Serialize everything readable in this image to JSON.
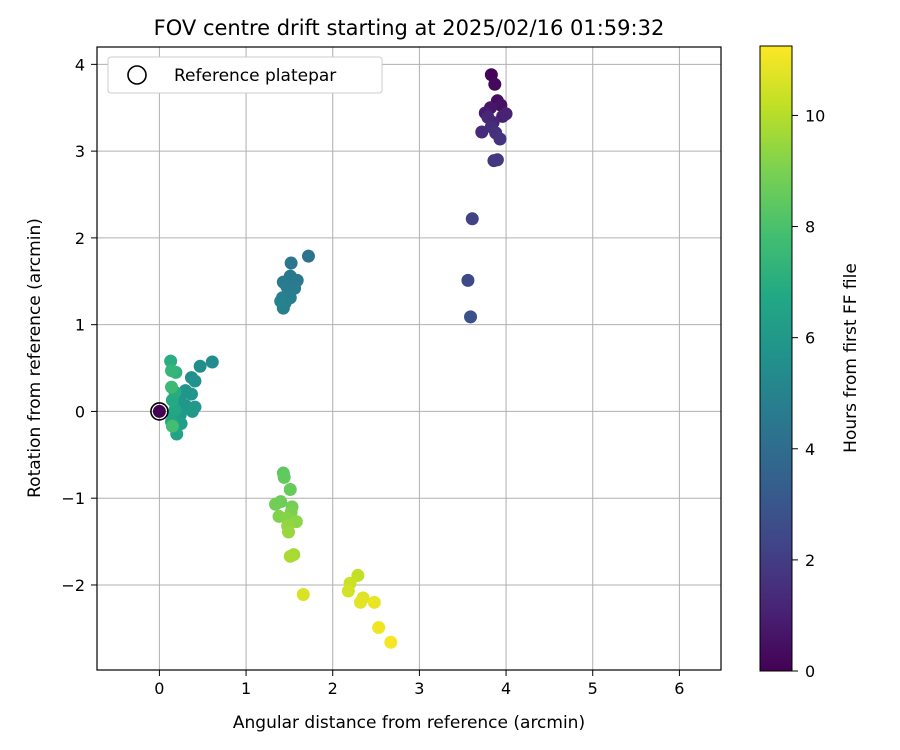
{
  "chart_data": {
    "type": "scatter",
    "title": "FOV centre drift starting at 2025/02/16 01:59:32",
    "xlabel": "Angular distance from reference (arcmin)",
    "ylabel": "Rotation from reference (arcmin)",
    "xlim": [
      -0.72,
      6.48
    ],
    "ylim": [
      -2.98,
      4.2
    ],
    "xticks": [
      0,
      1,
      2,
      3,
      4,
      5,
      6
    ],
    "yticks": [
      -2,
      -1,
      0,
      1,
      2,
      3,
      4
    ],
    "grid": true,
    "legend": {
      "position": "top-left",
      "entries": [
        "Reference platepar"
      ]
    },
    "reference": {
      "x": 0,
      "y": 0,
      "label": "Reference platepar"
    },
    "colorbar": {
      "label": "Hours from first FF file",
      "colormap": "viridis",
      "range": [
        0,
        11.25
      ],
      "ticks": [
        0,
        2,
        4,
        6,
        8,
        10
      ]
    },
    "points": [
      {
        "x": 3.83,
        "y": 3.88,
        "c": 0.1
      },
      {
        "x": 3.87,
        "y": 3.77,
        "c": 0.25
      },
      {
        "x": 3.9,
        "y": 3.58,
        "c": 0.4
      },
      {
        "x": 3.94,
        "y": 3.53,
        "c": 0.55
      },
      {
        "x": 3.82,
        "y": 3.5,
        "c": 0.7
      },
      {
        "x": 3.76,
        "y": 3.44,
        "c": 0.85
      },
      {
        "x": 3.96,
        "y": 3.4,
        "c": 0.95
      },
      {
        "x": 4.0,
        "y": 3.43,
        "c": 1.05
      },
      {
        "x": 3.85,
        "y": 3.33,
        "c": 1.15
      },
      {
        "x": 3.79,
        "y": 3.39,
        "c": 1.25
      },
      {
        "x": 3.72,
        "y": 3.22,
        "c": 1.35
      },
      {
        "x": 3.83,
        "y": 3.28,
        "c": 1.45
      },
      {
        "x": 3.88,
        "y": 3.21,
        "c": 1.55
      },
      {
        "x": 3.93,
        "y": 3.14,
        "c": 1.65
      },
      {
        "x": 3.86,
        "y": 2.89,
        "c": 1.75
      },
      {
        "x": 3.9,
        "y": 2.9,
        "c": 1.85
      },
      {
        "x": 3.61,
        "y": 2.22,
        "c": 2.2
      },
      {
        "x": 3.56,
        "y": 1.51,
        "c": 2.5
      },
      {
        "x": 3.59,
        "y": 1.09,
        "c": 2.8
      },
      {
        "x": 1.72,
        "y": 1.79,
        "c": 4.3
      },
      {
        "x": 1.52,
        "y": 1.71,
        "c": 4.4
      },
      {
        "x": 1.51,
        "y": 1.56,
        "c": 4.5
      },
      {
        "x": 1.59,
        "y": 1.51,
        "c": 4.55
      },
      {
        "x": 1.43,
        "y": 1.49,
        "c": 4.6
      },
      {
        "x": 1.56,
        "y": 1.42,
        "c": 4.65
      },
      {
        "x": 1.47,
        "y": 1.44,
        "c": 4.7
      },
      {
        "x": 1.51,
        "y": 1.31,
        "c": 4.75
      },
      {
        "x": 1.42,
        "y": 1.31,
        "c": 4.8
      },
      {
        "x": 1.45,
        "y": 1.25,
        "c": 4.85
      },
      {
        "x": 1.43,
        "y": 1.19,
        "c": 4.9
      },
      {
        "x": 1.4,
        "y": 1.27,
        "c": 4.95
      },
      {
        "x": 0.61,
        "y": 0.57,
        "c": 5.4
      },
      {
        "x": 0.47,
        "y": 0.52,
        "c": 5.5
      },
      {
        "x": 0.37,
        "y": 0.39,
        "c": 5.6
      },
      {
        "x": 0.41,
        "y": 0.35,
        "c": 5.65
      },
      {
        "x": 0.3,
        "y": 0.24,
        "c": 5.7
      },
      {
        "x": 0.37,
        "y": 0.2,
        "c": 5.75
      },
      {
        "x": 0.26,
        "y": 0.2,
        "c": 5.8
      },
      {
        "x": 0.22,
        "y": 0.12,
        "c": 5.85
      },
      {
        "x": 0.3,
        "y": 0.07,
        "c": 5.9
      },
      {
        "x": 0.41,
        "y": 0.05,
        "c": 5.95
      },
      {
        "x": 0.38,
        "y": 0.0,
        "c": 6.0
      },
      {
        "x": 0.24,
        "y": -0.04,
        "c": 6.1
      },
      {
        "x": 0.16,
        "y": -0.04,
        "c": 6.2
      },
      {
        "x": 0.25,
        "y": -0.14,
        "c": 6.3
      },
      {
        "x": 0.18,
        "y": -0.19,
        "c": 6.4
      },
      {
        "x": 0.2,
        "y": -0.26,
        "c": 6.5
      },
      {
        "x": 0.14,
        "y": -0.12,
        "c": 6.6
      },
      {
        "x": 0.18,
        "y": 0.02,
        "c": 6.7
      },
      {
        "x": 0.15,
        "y": 0.13,
        "c": 6.8
      },
      {
        "x": 0.18,
        "y": 0.22,
        "c": 6.9
      },
      {
        "x": 0.13,
        "y": 0.58,
        "c": 7.0
      },
      {
        "x": 0.19,
        "y": 0.45,
        "c": 7.2
      },
      {
        "x": 0.14,
        "y": 0.47,
        "c": 7.4
      },
      {
        "x": 0.14,
        "y": 0.28,
        "c": 7.6
      },
      {
        "x": 0.15,
        "y": -0.17,
        "c": 7.8
      },
      {
        "x": 1.43,
        "y": -0.71,
        "c": 8.4
      },
      {
        "x": 1.44,
        "y": -0.76,
        "c": 8.5
      },
      {
        "x": 1.51,
        "y": -0.9,
        "c": 8.6
      },
      {
        "x": 1.4,
        "y": -1.04,
        "c": 8.7
      },
      {
        "x": 1.34,
        "y": -1.07,
        "c": 8.8
      },
      {
        "x": 1.53,
        "y": -1.1,
        "c": 8.9
      },
      {
        "x": 1.52,
        "y": -1.16,
        "c": 9.0
      },
      {
        "x": 1.38,
        "y": -1.21,
        "c": 9.1
      },
      {
        "x": 1.47,
        "y": -1.23,
        "c": 9.2
      },
      {
        "x": 1.58,
        "y": -1.27,
        "c": 9.3
      },
      {
        "x": 1.48,
        "y": -1.32,
        "c": 9.4
      },
      {
        "x": 1.49,
        "y": -1.39,
        "c": 9.5
      },
      {
        "x": 1.55,
        "y": -1.65,
        "c": 9.7
      },
      {
        "x": 1.51,
        "y": -1.67,
        "c": 9.8
      },
      {
        "x": 2.29,
        "y": -1.89,
        "c": 10.2
      },
      {
        "x": 2.2,
        "y": -1.98,
        "c": 10.35
      },
      {
        "x": 2.18,
        "y": -2.07,
        "c": 10.5
      },
      {
        "x": 1.66,
        "y": -2.11,
        "c": 10.6
      },
      {
        "x": 2.35,
        "y": -2.15,
        "c": 10.7
      },
      {
        "x": 2.32,
        "y": -2.2,
        "c": 10.8
      },
      {
        "x": 2.48,
        "y": -2.2,
        "c": 10.9
      },
      {
        "x": 2.53,
        "y": -2.49,
        "c": 11.0
      },
      {
        "x": 2.67,
        "y": -2.66,
        "c": 11.15
      }
    ]
  }
}
